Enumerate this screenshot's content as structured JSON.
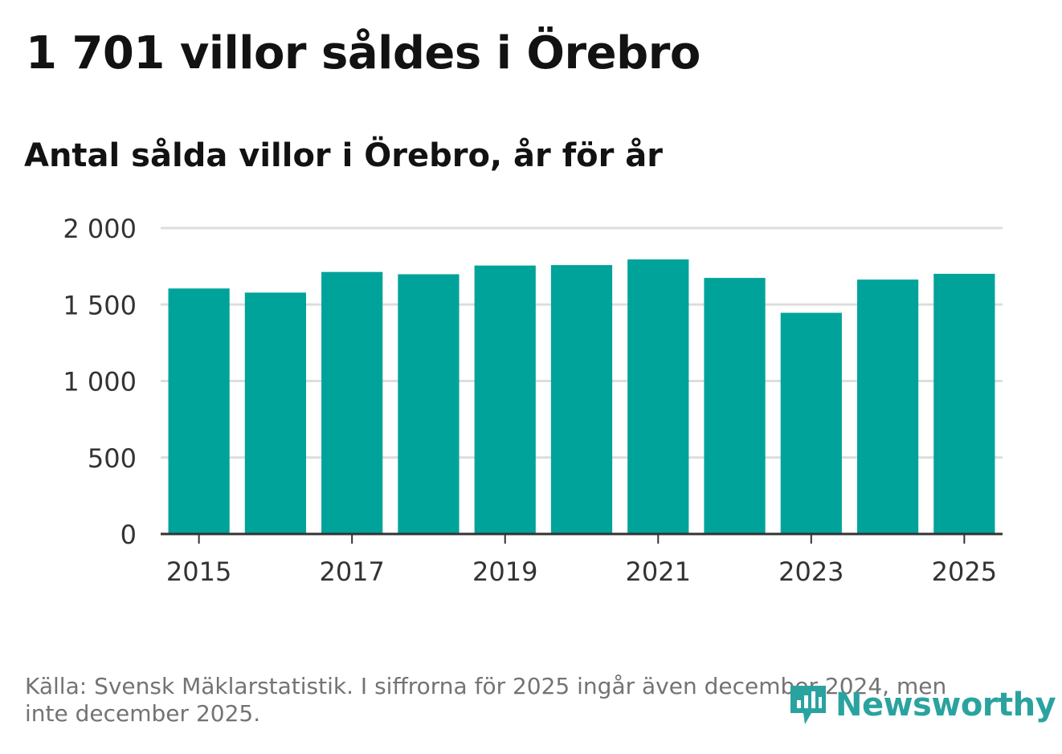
{
  "header": {
    "title": "1 701 villor såldes i Örebro",
    "subtitle": "Antal sålda villor i Örebro, år för år"
  },
  "chart_data": {
    "type": "bar",
    "title": "1 701 villor såldes i Örebro",
    "subtitle": "Antal sålda villor i Örebro, år för år",
    "categories": [
      "2015",
      "2016",
      "2017",
      "2018",
      "2019",
      "2020",
      "2021",
      "2022",
      "2023",
      "2024",
      "2025"
    ],
    "values": [
      1605,
      1578,
      1713,
      1698,
      1755,
      1758,
      1795,
      1674,
      1446,
      1663,
      1701
    ],
    "x_tick_labels": [
      "2015",
      "2017",
      "2019",
      "2021",
      "2023",
      "2025"
    ],
    "y_ticks": [
      0,
      500,
      1000,
      1500,
      2000
    ],
    "y_tick_labels": [
      "0",
      "500",
      "1 000",
      "1 500",
      "2 000"
    ],
    "ylim": [
      0,
      2000
    ],
    "xlabel": "",
    "ylabel": "",
    "grid": true,
    "bar_color": "#00a39a"
  },
  "footer": {
    "source": "Källa: Svensk Mäklarstatistik. I siffrorna för 2025 ingår även december 2024, men inte december 2025.",
    "logo_text": "Newsworthy",
    "logo_icon": "newsworthy-logo-icon",
    "logo_color": "#2aa3a0"
  }
}
